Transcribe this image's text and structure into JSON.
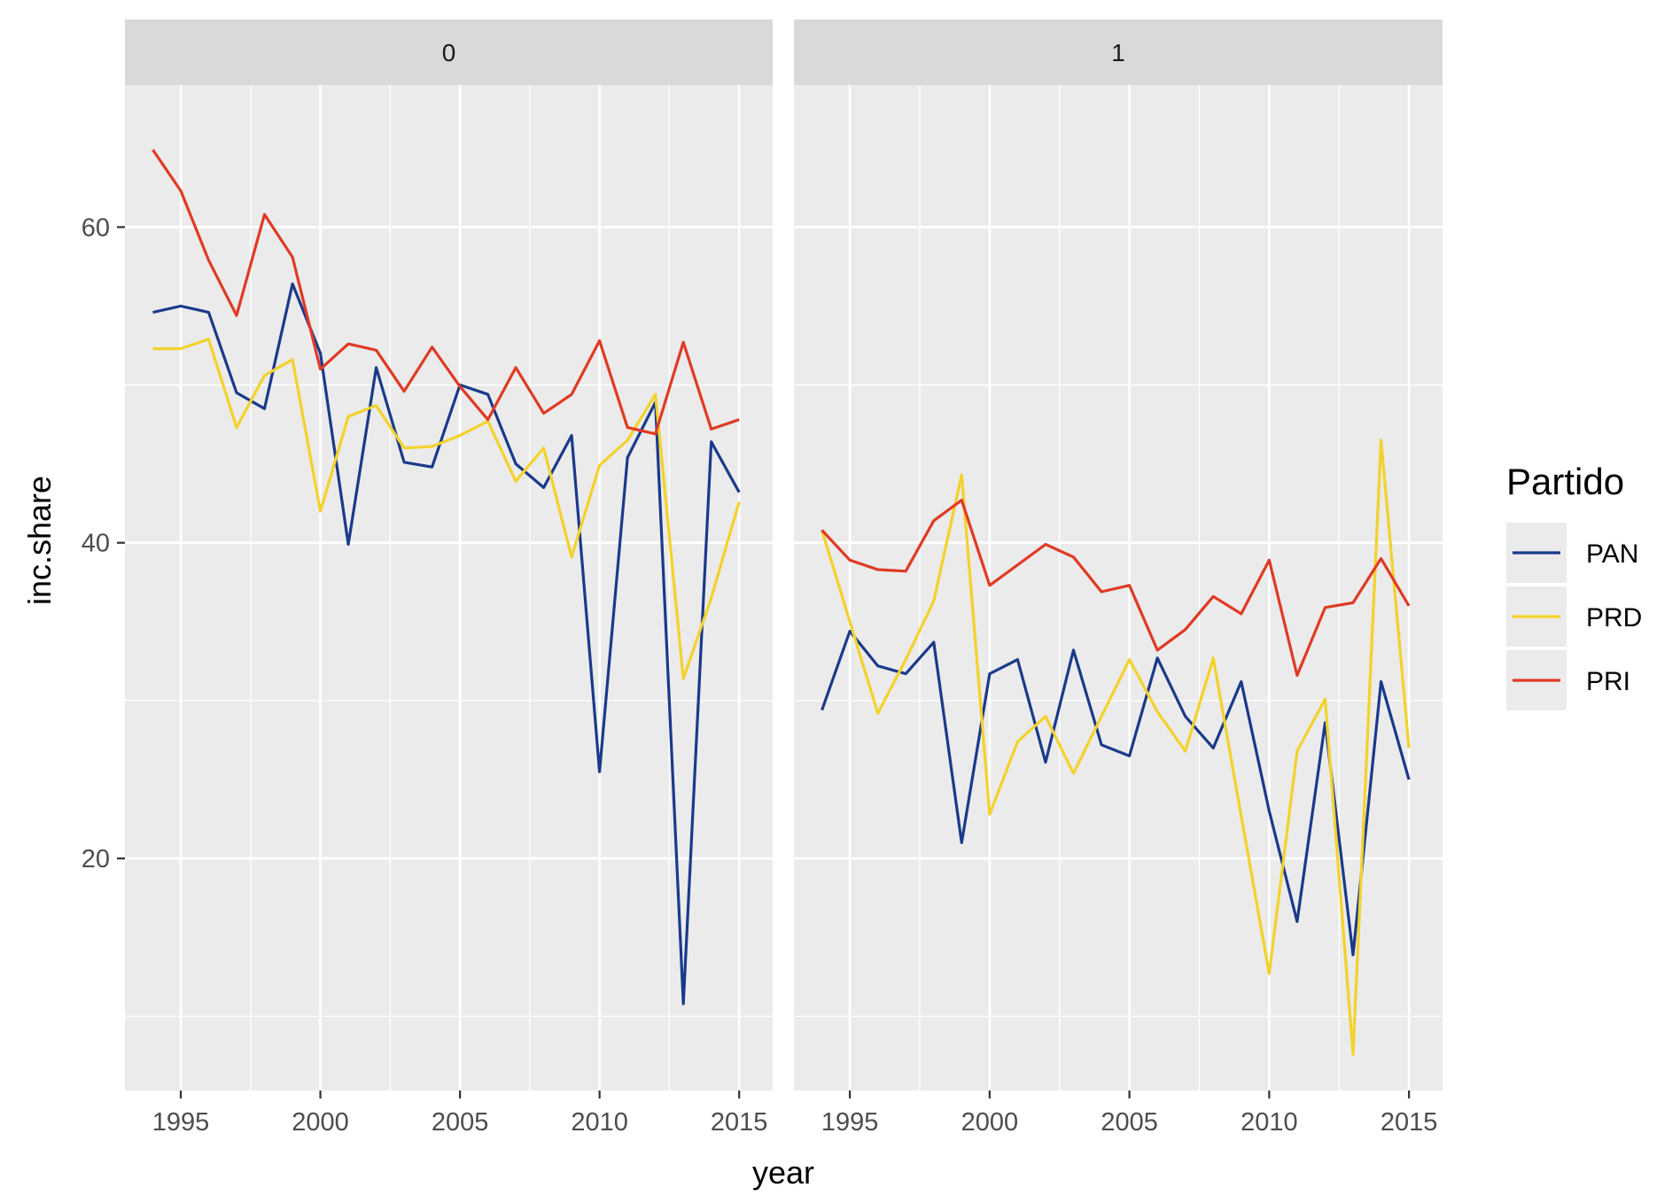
{
  "chart_data": {
    "type": "line",
    "xlabel": "year",
    "ylabel": "inc.share",
    "x_ticks": [
      1995,
      2000,
      2005,
      2010,
      2015
    ],
    "y_ticks": [
      20,
      40,
      60
    ],
    "xlim": [
      1993,
      2016.2
    ],
    "ylim": [
      5.3,
      69
    ],
    "grid": true,
    "legend": {
      "title": "Partido",
      "placement": "right"
    },
    "colors": {
      "PAN": "#1a3a8a",
      "PRD": "#f3d22b",
      "PRI": "#e03a24"
    },
    "x": [
      1994,
      1995,
      1996,
      1997,
      1998,
      1999,
      2000,
      2001,
      2002,
      2003,
      2004,
      2005,
      2006,
      2007,
      2008,
      2009,
      2010,
      2011,
      2012,
      2013,
      2014,
      2015
    ],
    "panels": [
      {
        "label": "0",
        "series": [
          {
            "name": "PAN",
            "values": [
              54.6,
              55.0,
              54.6,
              49.5,
              48.5,
              56.4,
              52.0,
              39.9,
              51.1,
              45.1,
              44.8,
              50.0,
              49.4,
              45.0,
              43.5,
              46.8,
              25.5,
              45.4,
              48.9,
              10.8,
              46.4,
              43.2
            ]
          },
          {
            "name": "PRD",
            "values": [
              52.3,
              52.3,
              52.9,
              47.3,
              50.6,
              51.6,
              42.0,
              48.0,
              48.7,
              46.0,
              46.1,
              46.8,
              47.7,
              43.9,
              46.0,
              39.1,
              44.9,
              46.5,
              49.4,
              31.4,
              36.5,
              42.6
            ]
          },
          {
            "name": "PRI",
            "values": [
              64.9,
              62.3,
              57.9,
              54.4,
              60.8,
              58.1,
              51.0,
              52.6,
              52.2,
              49.6,
              52.4,
              49.9,
              47.8,
              51.1,
              48.2,
              49.4,
              52.8,
              47.3,
              46.9,
              52.7,
              47.2,
              47.8
            ]
          }
        ]
      },
      {
        "label": "1",
        "series": [
          {
            "name": "PAN",
            "values": [
              29.4,
              34.4,
              32.2,
              31.7,
              33.7,
              21.0,
              31.7,
              32.6,
              26.1,
              33.2,
              27.2,
              26.5,
              32.7,
              29.0,
              27.0,
              31.2,
              23.0,
              16.0,
              28.6,
              13.9,
              31.2,
              25.0
            ]
          },
          {
            "name": "PRD",
            "values": [
              40.8,
              35.0,
              29.2,
              32.6,
              36.3,
              44.3,
              22.8,
              27.4,
              29.0,
              25.4,
              29.0,
              32.6,
              29.3,
              26.8,
              32.7,
              22.7,
              12.7,
              26.8,
              30.1,
              7.6,
              46.5,
              27.0
            ]
          },
          {
            "name": "PRI",
            "values": [
              40.8,
              38.9,
              38.3,
              38.2,
              41.4,
              42.7,
              37.3,
              38.6,
              39.9,
              39.1,
              36.9,
              37.3,
              33.2,
              34.5,
              36.6,
              35.5,
              38.9,
              31.6,
              35.9,
              36.2,
              39.0,
              36.0
            ]
          }
        ]
      }
    ]
  }
}
